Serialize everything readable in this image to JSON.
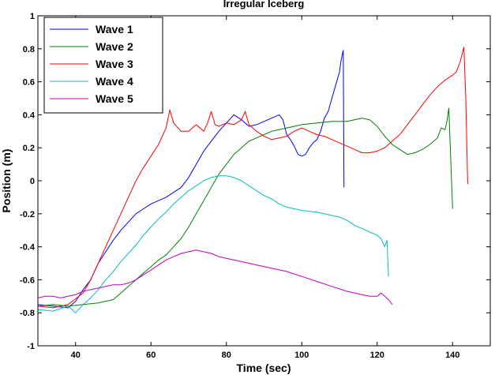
{
  "chart_data": {
    "type": "line",
    "title": "Irregular Iceberg",
    "xlabel": "Time (sec)",
    "ylabel": "Position (m)",
    "xlim": [
      30,
      150
    ],
    "ylim": [
      -1,
      1
    ],
    "xticks": [
      40,
      60,
      80,
      100,
      120,
      140
    ],
    "yticks": [
      -1,
      -0.8,
      -0.6,
      -0.4,
      -0.2,
      0,
      0.2,
      0.4,
      0.6,
      0.8,
      1
    ],
    "xtick_labels": [
      "40",
      "60",
      "80",
      "100",
      "120",
      "140"
    ],
    "ytick_labels": [
      "-1",
      "-0.8",
      "-0.6",
      "-0.4",
      "-0.2",
      "0",
      "0.2",
      "0.4",
      "0.6",
      "0.8",
      "1"
    ],
    "grid": false,
    "legend_position": "top-left",
    "series": [
      {
        "name": "Wave 1",
        "color": "#0000ff",
        "points": [
          [
            30,
            -0.75
          ],
          [
            34,
            -0.76
          ],
          [
            38,
            -0.77
          ],
          [
            40,
            -0.73
          ],
          [
            42,
            -0.66
          ],
          [
            44,
            -0.6
          ],
          [
            46,
            -0.5
          ],
          [
            48,
            -0.43
          ],
          [
            50,
            -0.36
          ],
          [
            52,
            -0.3
          ],
          [
            54,
            -0.25
          ],
          [
            56,
            -0.2
          ],
          [
            58,
            -0.17
          ],
          [
            60,
            -0.14
          ],
          [
            62,
            -0.12
          ],
          [
            64,
            -0.1
          ],
          [
            66,
            -0.07
          ],
          [
            68,
            -0.04
          ],
          [
            70,
            0.02
          ],
          [
            72,
            0.1
          ],
          [
            74,
            0.18
          ],
          [
            76,
            0.24
          ],
          [
            78,
            0.3
          ],
          [
            80,
            0.35
          ],
          [
            82,
            0.4
          ],
          [
            84,
            0.37
          ],
          [
            86,
            0.33
          ],
          [
            88,
            0.34
          ],
          [
            90,
            0.36
          ],
          [
            92,
            0.38
          ],
          [
            94,
            0.4
          ],
          [
            95,
            0.37
          ],
          [
            96,
            0.28
          ],
          [
            97,
            0.25
          ],
          [
            98,
            0.21
          ],
          [
            99,
            0.16
          ],
          [
            100,
            0.15
          ],
          [
            101,
            0.16
          ],
          [
            102,
            0.2
          ],
          [
            103,
            0.23
          ],
          [
            104,
            0.25
          ],
          [
            105,
            0.3
          ],
          [
            106,
            0.38
          ],
          [
            107,
            0.42
          ],
          [
            108,
            0.5
          ],
          [
            109,
            0.58
          ],
          [
            110,
            0.66
          ],
          [
            110.5,
            0.74
          ],
          [
            111,
            0.79
          ],
          [
            111.2,
            -0.04
          ]
        ]
      },
      {
        "name": "Wave 2",
        "color": "#008000",
        "points": [
          [
            30,
            -0.76
          ],
          [
            34,
            -0.75
          ],
          [
            38,
            -0.76
          ],
          [
            42,
            -0.75
          ],
          [
            46,
            -0.74
          ],
          [
            50,
            -0.72
          ],
          [
            52,
            -0.68
          ],
          [
            54,
            -0.64
          ],
          [
            56,
            -0.6
          ],
          [
            58,
            -0.56
          ],
          [
            60,
            -0.52
          ],
          [
            62,
            -0.48
          ],
          [
            64,
            -0.45
          ],
          [
            66,
            -0.4
          ],
          [
            68,
            -0.35
          ],
          [
            70,
            -0.28
          ],
          [
            72,
            -0.2
          ],
          [
            74,
            -0.12
          ],
          [
            76,
            -0.04
          ],
          [
            78,
            0.04
          ],
          [
            80,
            0.1
          ],
          [
            82,
            0.16
          ],
          [
            84,
            0.2
          ],
          [
            86,
            0.24
          ],
          [
            88,
            0.26
          ],
          [
            90,
            0.28
          ],
          [
            92,
            0.3
          ],
          [
            94,
            0.31
          ],
          [
            96,
            0.32
          ],
          [
            98,
            0.33
          ],
          [
            100,
            0.34
          ],
          [
            104,
            0.35
          ],
          [
            108,
            0.36
          ],
          [
            112,
            0.36
          ],
          [
            116,
            0.38
          ],
          [
            118,
            0.37
          ],
          [
            120,
            0.33
          ],
          [
            122,
            0.27
          ],
          [
            124,
            0.22
          ],
          [
            126,
            0.19
          ],
          [
            128,
            0.16
          ],
          [
            130,
            0.17
          ],
          [
            132,
            0.19
          ],
          [
            134,
            0.22
          ],
          [
            136,
            0.26
          ],
          [
            137,
            0.32
          ],
          [
            138,
            0.31
          ],
          [
            138.5,
            0.36
          ],
          [
            139,
            0.44
          ],
          [
            139.4,
            0.2
          ],
          [
            140,
            -0.17
          ]
        ]
      },
      {
        "name": "Wave 3",
        "color": "#ff0000",
        "points": [
          [
            30,
            -0.76
          ],
          [
            34,
            -0.77
          ],
          [
            38,
            -0.75
          ],
          [
            42,
            -0.68
          ],
          [
            44,
            -0.6
          ],
          [
            46,
            -0.5
          ],
          [
            48,
            -0.4
          ],
          [
            50,
            -0.3
          ],
          [
            52,
            -0.2
          ],
          [
            54,
            -0.1
          ],
          [
            56,
            0.0
          ],
          [
            58,
            0.08
          ],
          [
            60,
            0.15
          ],
          [
            62,
            0.22
          ],
          [
            64,
            0.32
          ],
          [
            65,
            0.43
          ],
          [
            66,
            0.35
          ],
          [
            68,
            0.3
          ],
          [
            70,
            0.3
          ],
          [
            72,
            0.34
          ],
          [
            74,
            0.3
          ],
          [
            75,
            0.35
          ],
          [
            76,
            0.42
          ],
          [
            77,
            0.34
          ],
          [
            78,
            0.33
          ],
          [
            80,
            0.35
          ],
          [
            82,
            0.34
          ],
          [
            84,
            0.37
          ],
          [
            85,
            0.42
          ],
          [
            86,
            0.34
          ],
          [
            88,
            0.3
          ],
          [
            90,
            0.27
          ],
          [
            92,
            0.25
          ],
          [
            94,
            0.26
          ],
          [
            96,
            0.27
          ],
          [
            98,
            0.3
          ],
          [
            100,
            0.32
          ],
          [
            102,
            0.3
          ],
          [
            104,
            0.28
          ],
          [
            106,
            0.27
          ],
          [
            108,
            0.25
          ],
          [
            110,
            0.23
          ],
          [
            112,
            0.21
          ],
          [
            114,
            0.19
          ],
          [
            116,
            0.17
          ],
          [
            118,
            0.17
          ],
          [
            120,
            0.18
          ],
          [
            122,
            0.2
          ],
          [
            124,
            0.24
          ],
          [
            126,
            0.28
          ],
          [
            128,
            0.34
          ],
          [
            130,
            0.4
          ],
          [
            132,
            0.46
          ],
          [
            134,
            0.52
          ],
          [
            136,
            0.57
          ],
          [
            138,
            0.61
          ],
          [
            140,
            0.64
          ],
          [
            141,
            0.66
          ],
          [
            142,
            0.72
          ],
          [
            143,
            0.81
          ],
          [
            143.5,
            0.5
          ],
          [
            144,
            -0.02
          ]
        ]
      },
      {
        "name": "Wave 4",
        "color": "#00bfbf",
        "points": [
          [
            30,
            -0.78
          ],
          [
            34,
            -0.79
          ],
          [
            38,
            -0.76
          ],
          [
            40,
            -0.8
          ],
          [
            42,
            -0.75
          ],
          [
            44,
            -0.71
          ],
          [
            46,
            -0.66
          ],
          [
            48,
            -0.6
          ],
          [
            50,
            -0.55
          ],
          [
            52,
            -0.49
          ],
          [
            54,
            -0.44
          ],
          [
            56,
            -0.39
          ],
          [
            58,
            -0.33
          ],
          [
            60,
            -0.28
          ],
          [
            62,
            -0.23
          ],
          [
            64,
            -0.19
          ],
          [
            66,
            -0.14
          ],
          [
            68,
            -0.1
          ],
          [
            70,
            -0.06
          ],
          [
            72,
            -0.03
          ],
          [
            74,
            0.0
          ],
          [
            76,
            0.02
          ],
          [
            78,
            0.03
          ],
          [
            80,
            0.03
          ],
          [
            82,
            0.02
          ],
          [
            84,
            0.0
          ],
          [
            86,
            -0.03
          ],
          [
            88,
            -0.06
          ],
          [
            90,
            -0.09
          ],
          [
            92,
            -0.11
          ],
          [
            94,
            -0.14
          ],
          [
            96,
            -0.16
          ],
          [
            98,
            -0.17
          ],
          [
            100,
            -0.18
          ],
          [
            104,
            -0.19
          ],
          [
            106,
            -0.2
          ],
          [
            108,
            -0.21
          ],
          [
            110,
            -0.22
          ],
          [
            112,
            -0.24
          ],
          [
            114,
            -0.27
          ],
          [
            116,
            -0.29
          ],
          [
            118,
            -0.31
          ],
          [
            120,
            -0.33
          ],
          [
            121,
            -0.35
          ],
          [
            122,
            -0.4
          ],
          [
            122.6,
            -0.36
          ],
          [
            123,
            -0.58
          ]
        ]
      },
      {
        "name": "Wave 5",
        "color": "#bf00bf",
        "points": [
          [
            30,
            -0.71
          ],
          [
            32,
            -0.7
          ],
          [
            34,
            -0.7
          ],
          [
            36,
            -0.71
          ],
          [
            38,
            -0.7
          ],
          [
            40,
            -0.69
          ],
          [
            42,
            -0.67
          ],
          [
            44,
            -0.66
          ],
          [
            46,
            -0.65
          ],
          [
            48,
            -0.64
          ],
          [
            50,
            -0.63
          ],
          [
            52,
            -0.63
          ],
          [
            54,
            -0.62
          ],
          [
            56,
            -0.6
          ],
          [
            58,
            -0.57
          ],
          [
            60,
            -0.54
          ],
          [
            62,
            -0.51
          ],
          [
            64,
            -0.48
          ],
          [
            66,
            -0.46
          ],
          [
            68,
            -0.44
          ],
          [
            70,
            -0.43
          ],
          [
            72,
            -0.42
          ],
          [
            74,
            -0.43
          ],
          [
            76,
            -0.44
          ],
          [
            78,
            -0.46
          ],
          [
            80,
            -0.47
          ],
          [
            84,
            -0.49
          ],
          [
            88,
            -0.51
          ],
          [
            92,
            -0.53
          ],
          [
            96,
            -0.55
          ],
          [
            100,
            -0.58
          ],
          [
            104,
            -0.61
          ],
          [
            108,
            -0.64
          ],
          [
            112,
            -0.67
          ],
          [
            116,
            -0.69
          ],
          [
            118,
            -0.7
          ],
          [
            120,
            -0.7
          ],
          [
            121,
            -0.68
          ],
          [
            122,
            -0.7
          ],
          [
            123,
            -0.72
          ],
          [
            124,
            -0.75
          ]
        ]
      }
    ]
  }
}
